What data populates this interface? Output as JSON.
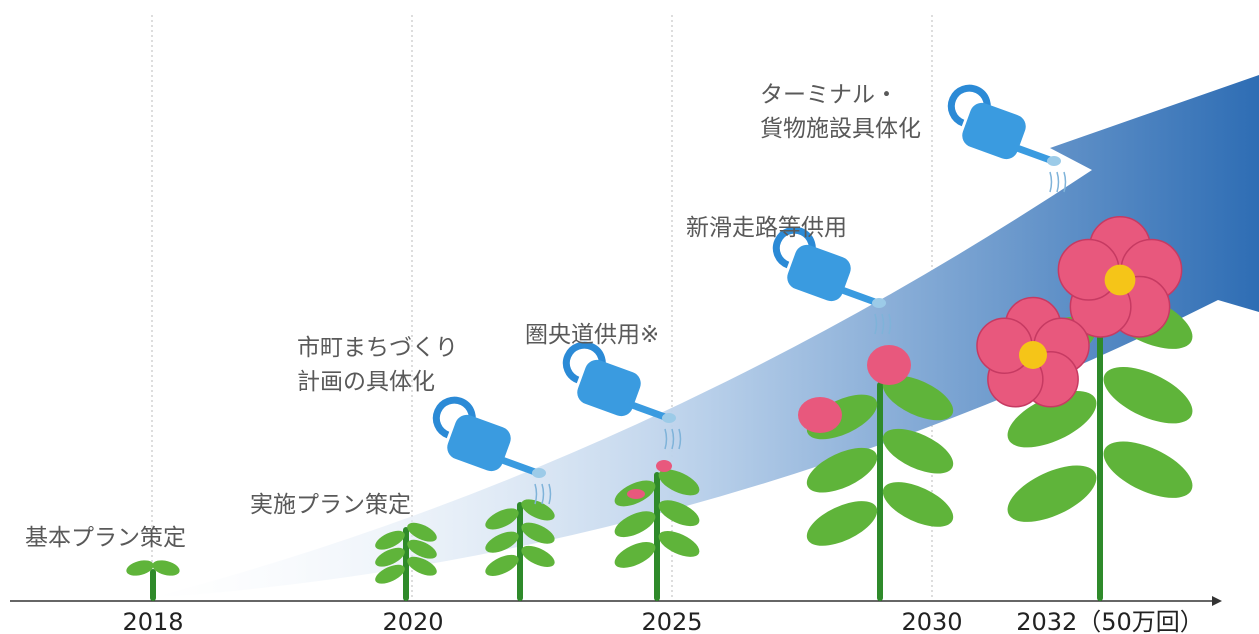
{
  "timeline": {
    "ticks": [
      "2018",
      "2020",
      "2025",
      "2030",
      "2032（50万回）"
    ],
    "milestones": [
      {
        "lines": [
          "基本プラン策定"
        ]
      },
      {
        "lines": [
          "実施プラン策定"
        ]
      },
      {
        "lines": [
          "市町まちづくり",
          "計画の具体化"
        ]
      },
      {
        "lines": [
          "圏央道供用※"
        ]
      },
      {
        "lines": [
          "新滑走路等供用"
        ]
      },
      {
        "lines": [
          "ターミナル・",
          "貨物施設具体化"
        ]
      }
    ]
  }
}
